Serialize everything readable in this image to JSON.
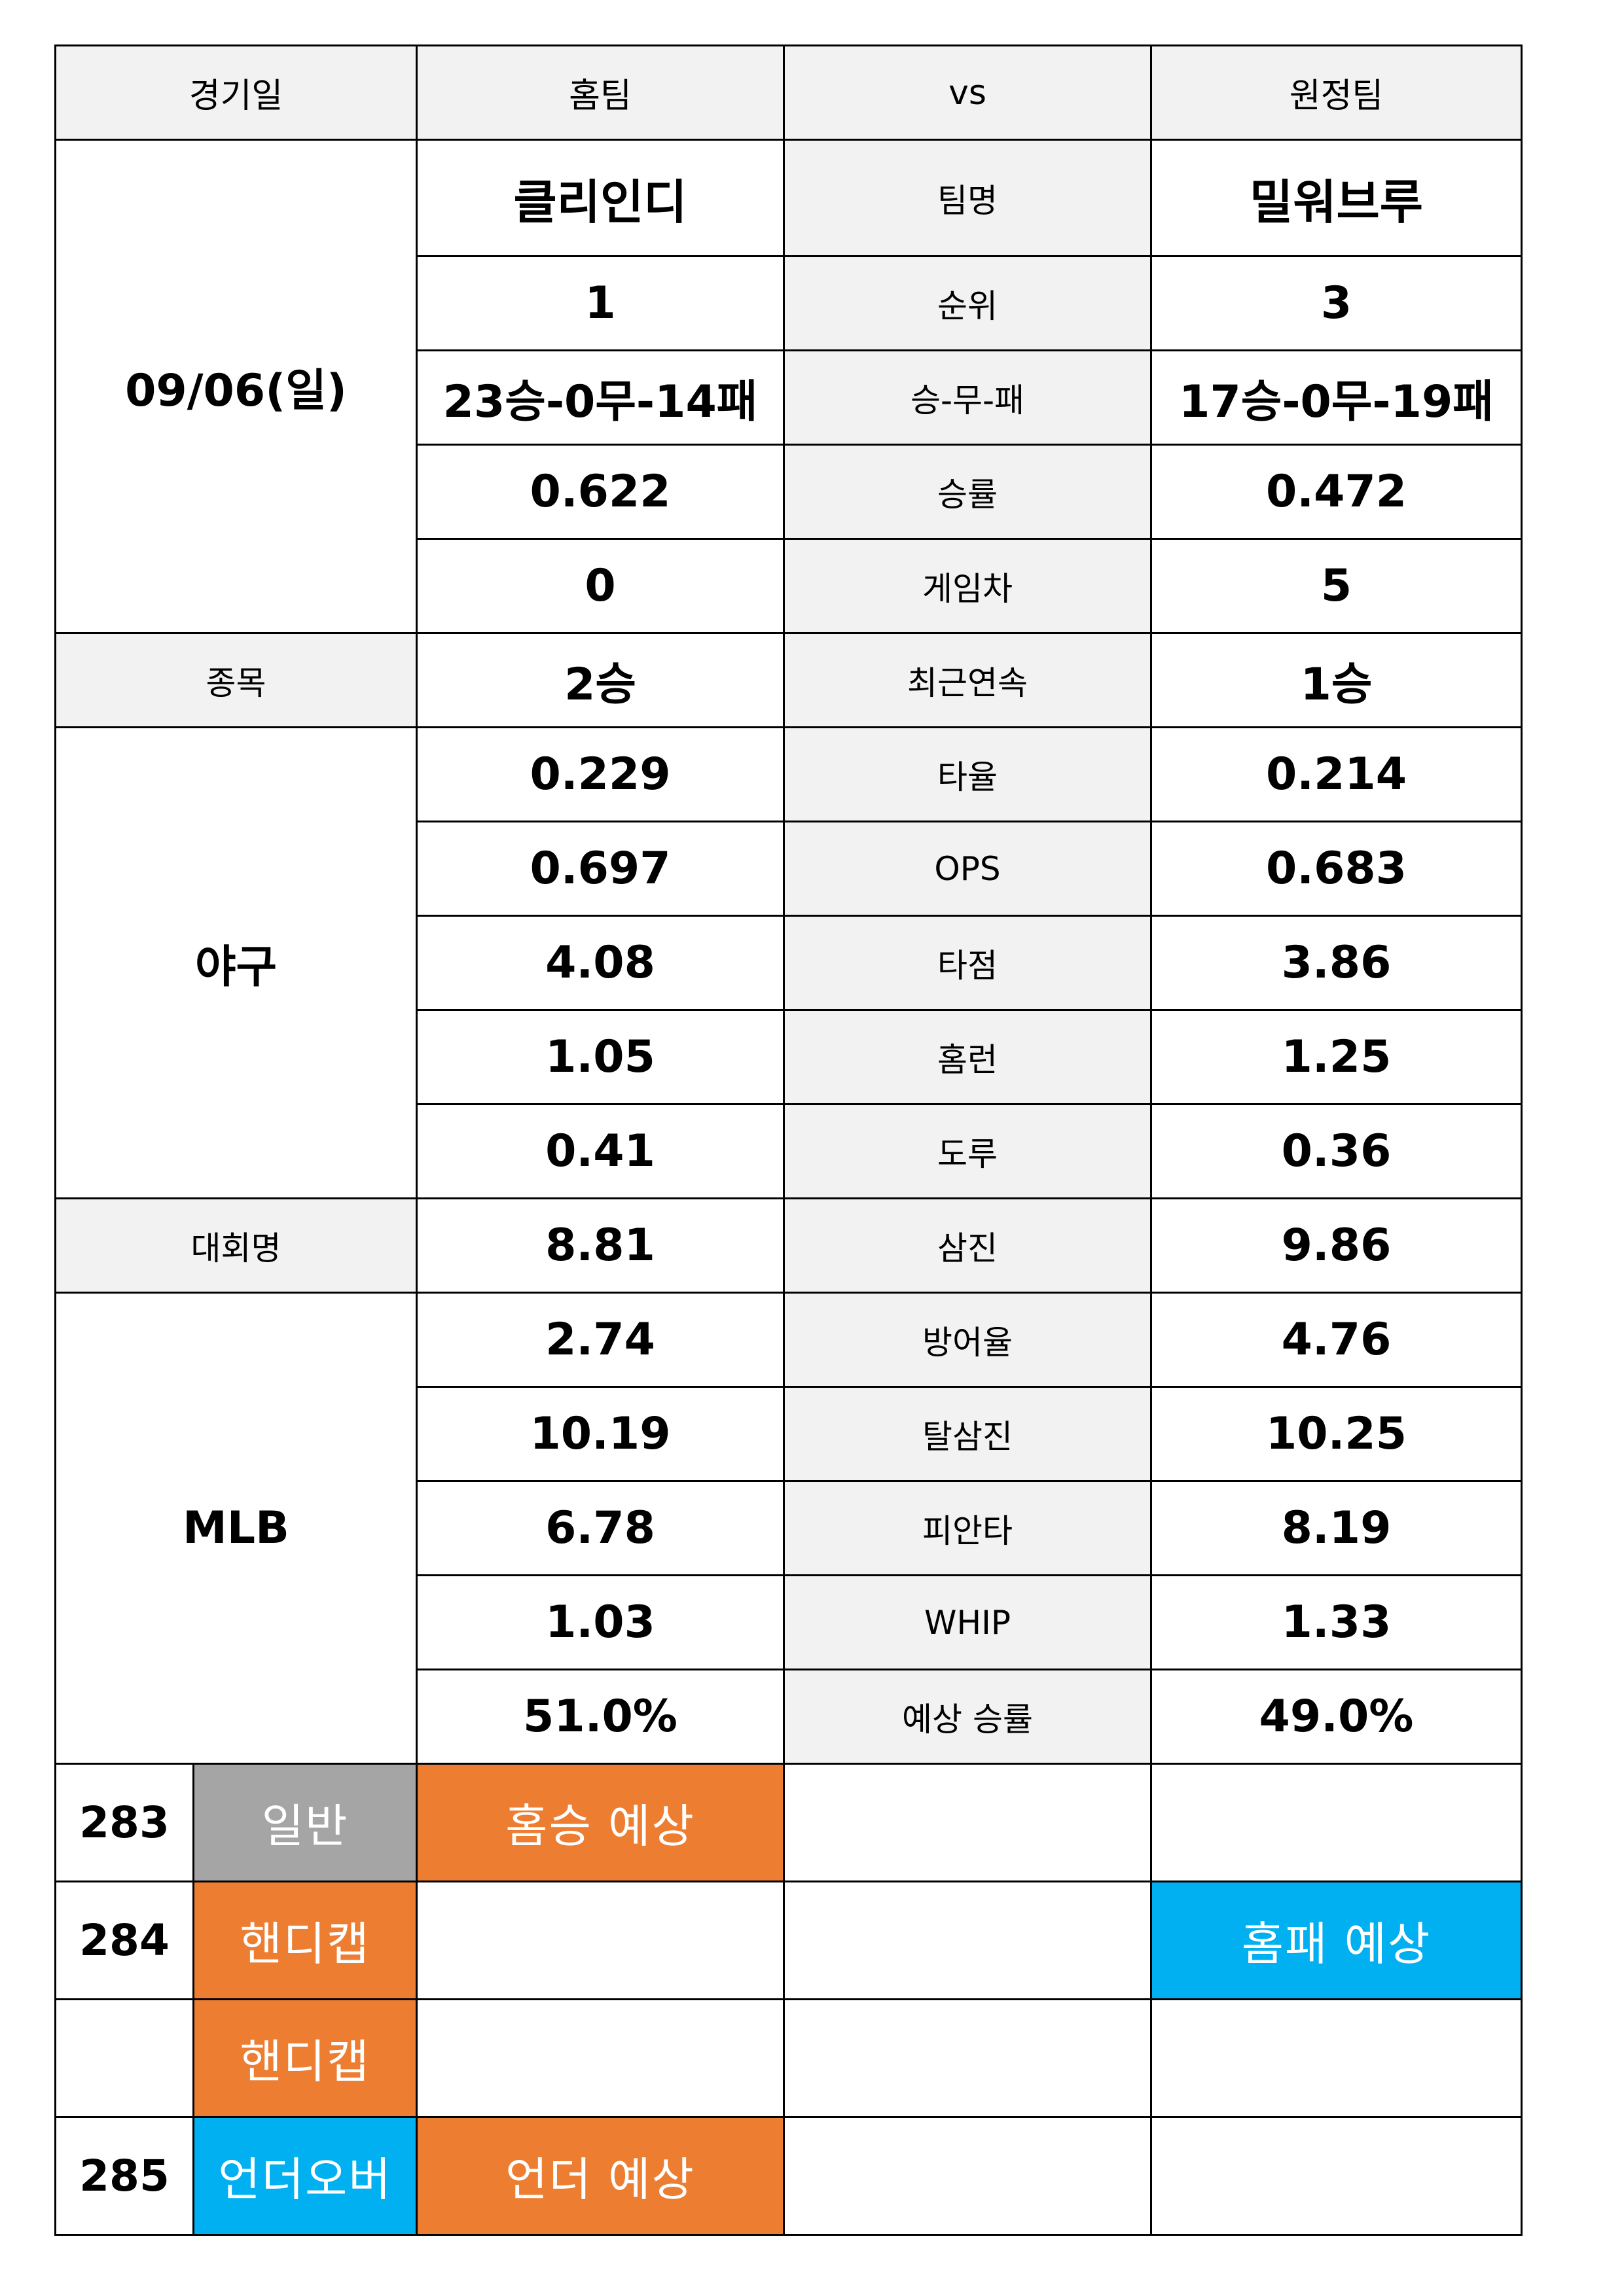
{
  "header": {
    "date_label": "경기일",
    "home_label": "홈팀",
    "vs_label": "vs",
    "away_label": "원정팀"
  },
  "game": {
    "date": "09/06(일)",
    "sport_label": "종목",
    "sport": "야구",
    "league_label": "대회명",
    "league": "MLB"
  },
  "stats": [
    {
      "label": "팀명",
      "home": "클리인디",
      "away": "밀워브루"
    },
    {
      "label": "순위",
      "home": "1",
      "away": "3"
    },
    {
      "label": "승-무-패",
      "home": "23승-0무-14패",
      "away": "17승-0무-19패"
    },
    {
      "label": "승률",
      "home": "0.622",
      "away": "0.472"
    },
    {
      "label": "게임차",
      "home": "0",
      "away": "5"
    },
    {
      "label": "최근연속",
      "home": "2승",
      "away": "1승"
    },
    {
      "label": "타율",
      "home": "0.229",
      "away": "0.214"
    },
    {
      "label": "OPS",
      "home": "0.697",
      "away": "0.683"
    },
    {
      "label": "타점",
      "home": "4.08",
      "away": "3.86"
    },
    {
      "label": "홈런",
      "home": "1.05",
      "away": "1.25"
    },
    {
      "label": "도루",
      "home": "0.41",
      "away": "0.36"
    },
    {
      "label": "삼진",
      "home": "8.81",
      "away": "9.86"
    },
    {
      "label": "방어율",
      "home": "2.74",
      "away": "4.76"
    },
    {
      "label": "탈삼진",
      "home": "10.19",
      "away": "10.25"
    },
    {
      "label": "피안타",
      "home": "6.78",
      "away": "8.19"
    },
    {
      "label": "WHIP",
      "home": "1.03",
      "away": "1.33"
    },
    {
      "label": "예상 승률",
      "home": "51.0%",
      "away": "49.0%"
    }
  ],
  "bets": [
    {
      "no": "283",
      "type": "일반",
      "home_pick": "홈승 예상",
      "draw_pick": "",
      "away_pick": ""
    },
    {
      "no": "284",
      "type": "핸디캡",
      "home_pick": "",
      "draw_pick": "",
      "away_pick": "홈패 예상"
    },
    {
      "no": "",
      "type": "핸디캡",
      "home_pick": "",
      "draw_pick": "",
      "away_pick": ""
    },
    {
      "no": "285",
      "type": "언더오버",
      "home_pick": "언더 예상",
      "draw_pick": "",
      "away_pick": ""
    }
  ],
  "colors": {
    "orange": "#ed7d31",
    "blue": "#00b0f0",
    "gray_tag": "#a5a5a5",
    "label_bg": "#f2f2f2"
  }
}
